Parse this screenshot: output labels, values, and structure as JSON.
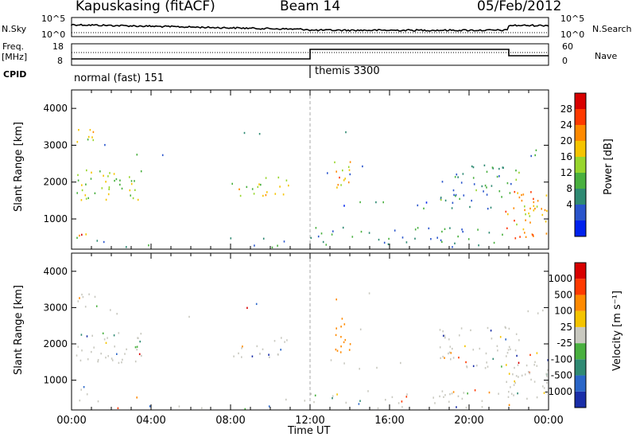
{
  "header": {
    "station": "Kapuskasing (fitACF)",
    "beam": "Beam 14",
    "date": "05/Feb/2012"
  },
  "side_labels": {
    "nsky": "N.Sky",
    "nsearch": "N.Search",
    "freq": "Freq.",
    "freq_unit": "[MHz]",
    "nave": "Nave",
    "cpid": "CPID"
  },
  "cpid_modes": [
    {
      "label": "normal (fast) 151",
      "start_hr": 0
    },
    {
      "label": "themis 3300",
      "start_hr": 12
    }
  ],
  "noise_axis": {
    "left_ticks": [
      "10^5",
      "10^0"
    ],
    "right_ticks": [
      "10^5",
      "10^0"
    ]
  },
  "freq_axis": {
    "left_ticks": [
      "18",
      "8"
    ],
    "right_ticks": [
      "60",
      "0"
    ]
  },
  "chart_data": {
    "type": "heatmap",
    "panels": [
      {
        "name": "power",
        "ylabel": "Slant Range [km]",
        "colorbar_label": "Power [dB]",
        "colorbar_ticks": [
          "28",
          "24",
          "20",
          "16",
          "12",
          "8",
          "4"
        ],
        "colors": [
          "#0022ee",
          "#2a55cc",
          "#2f8a73",
          "#49b03f",
          "#98d62d",
          "#f5c400",
          "#ff8a00",
          "#ff3a00",
          "#d80000"
        ]
      },
      {
        "name": "velocity",
        "ylabel": "Slant Range [km]",
        "colorbar_label": "Velocity [m s⁻¹]",
        "colorbar_ticks": [
          "1000",
          "500",
          "100",
          "25",
          "-25",
          "-100",
          "-500",
          "-1000"
        ],
        "colors": [
          "#1a2ea8",
          "#2a66c8",
          "#2f8a73",
          "#49b03f",
          "#c9c9c0",
          "#f5c400",
          "#ff8a00",
          "#ff3a00",
          "#d80000"
        ]
      }
    ],
    "x_ticks": [
      "00:00",
      "04:00",
      "08:00",
      "12:00",
      "16:00",
      "20:00",
      "00:00"
    ],
    "xlabel": "Time UT",
    "xlim": [
      0,
      24
    ],
    "y_ticks": [
      "1000",
      "2000",
      "3000",
      "4000"
    ],
    "ylim": [
      180,
      4500
    ],
    "echo_regions": [
      {
        "t": [
          0.2,
          1.4
        ],
        "r": [
          3050,
          3450
        ],
        "p": 0.55,
        "dens": 0.7
      },
      {
        "t": [
          0.2,
          3.6
        ],
        "r": [
          1500,
          2350
        ],
        "p": 0.5,
        "dens": 0.55
      },
      {
        "t": [
          0.2,
          0.8
        ],
        "r": [
          550,
          900
        ],
        "p": 0.85,
        "dens": 0.6
      },
      {
        "t": [
          1.0,
          4.0
        ],
        "r": [
          2650,
          3050
        ],
        "p": 0.2,
        "dens": 0.06
      },
      {
        "t": [
          4.0,
          6.5
        ],
        "r": [
          2650,
          2900
        ],
        "p": 0.2,
        "dens": 0.05
      },
      {
        "t": [
          7.8,
          10.0
        ],
        "r": [
          3000,
          3500
        ],
        "p": 0.2,
        "dens": 0.06
      },
      {
        "t": [
          8.0,
          11.0
        ],
        "r": [
          1650,
          2200
        ],
        "p": 0.55,
        "dens": 0.45
      },
      {
        "t": [
          0,
          12
        ],
        "r": [
          200,
          550
        ],
        "p": 0.2,
        "dens": 0.1
      },
      {
        "t": [
          13.2,
          14.0
        ],
        "r": [
          1700,
          2600
        ],
        "p": 0.65,
        "dens": 0.7
      },
      {
        "t": [
          12.0,
          22.0
        ],
        "r": [
          250,
          800
        ],
        "p": 0.25,
        "dens": 0.3
      },
      {
        "t": [
          13.0,
          22.0
        ],
        "r": [
          1300,
          1600
        ],
        "p": 0.2,
        "dens": 0.18
      },
      {
        "t": [
          12.5,
          15.0
        ],
        "r": [
          2200,
          3600
        ],
        "p": 0.15,
        "dens": 0.05
      },
      {
        "t": [
          18.5,
          22.5
        ],
        "r": [
          1500,
          2500
        ],
        "p": 0.3,
        "dens": 0.45
      },
      {
        "t": [
          21.8,
          24.0
        ],
        "r": [
          500,
          1800
        ],
        "p": 0.7,
        "dens": 0.6
      },
      {
        "t": [
          22.8,
          24.0
        ],
        "r": [
          2700,
          3000
        ],
        "p": 0.3,
        "dens": 0.3
      }
    ]
  }
}
